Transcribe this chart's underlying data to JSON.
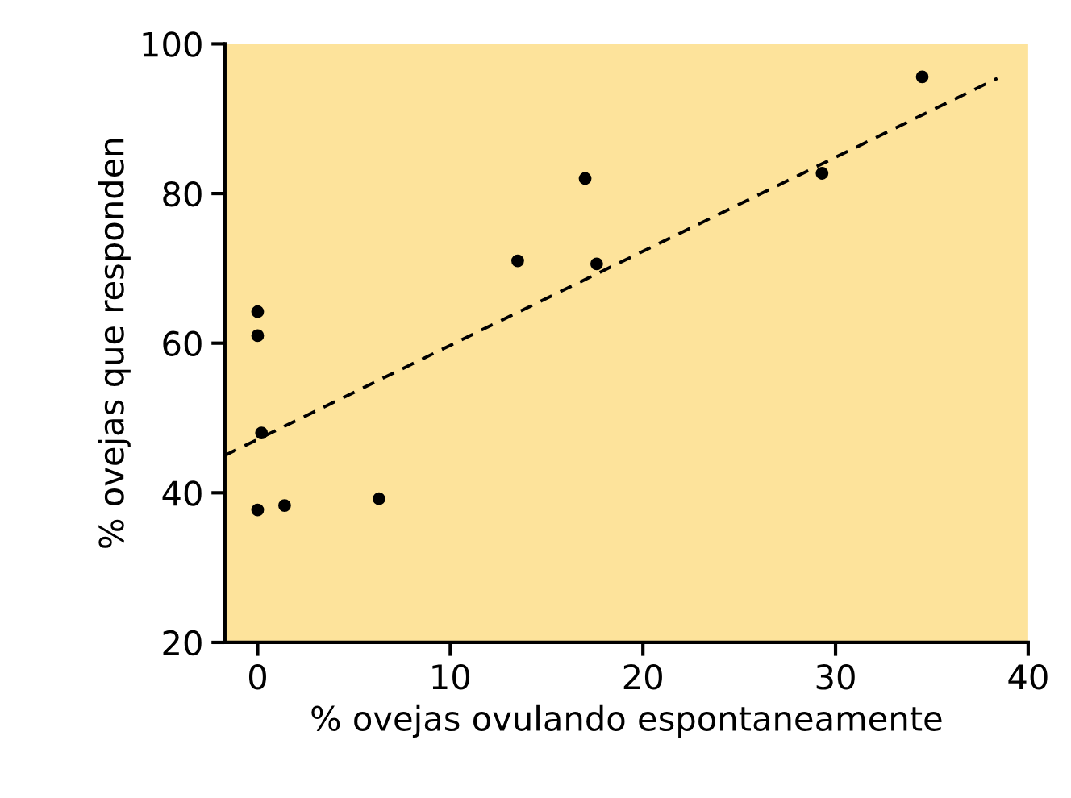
{
  "chart_data": {
    "type": "scatter",
    "xlabel": "% ovejas ovulando espontaneamente",
    "ylabel": "% ovejas que responden",
    "series": [
      {
        "color": "#000000",
        "marker": "circle",
        "x": [
          0,
          0,
          0.2,
          0,
          1.4,
          6.3,
          13.5,
          17,
          17.6,
          29.3,
          34.5
        ],
        "values": [
          64.2,
          61,
          48,
          37.7,
          38.3,
          39.2,
          71,
          82,
          70.6,
          82.7,
          95.6
        ]
      },
      {
        "type": "line",
        "color": "#000000",
        "line_style": "dashed",
        "marker": "none",
        "x": [
          -1.7,
          38.4
        ],
        "values": [
          45,
          95.4
        ]
      }
    ],
    "xlim": [
      -1.7,
      40
    ],
    "ylim": [
      20,
      100
    ],
    "xticks": [
      0,
      10,
      20,
      30,
      40
    ],
    "yticks": [
      20,
      40,
      60,
      80,
      100
    ],
    "grid": false,
    "legend": false
  }
}
